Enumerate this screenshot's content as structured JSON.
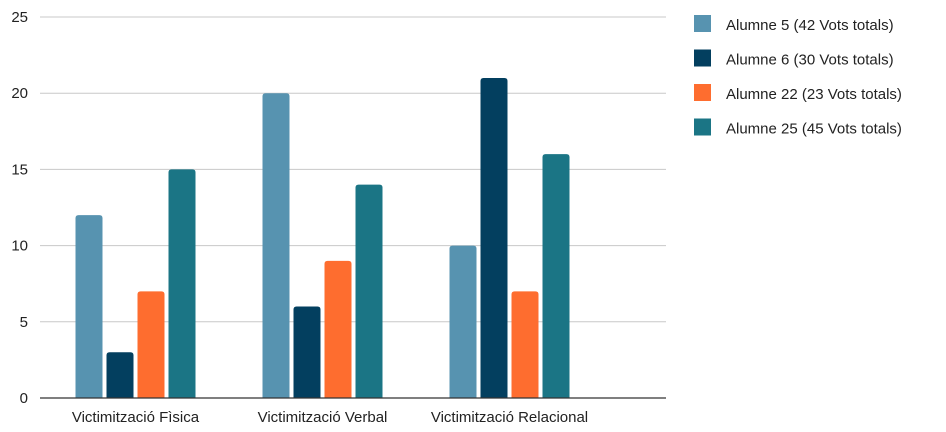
{
  "chart_data": {
    "type": "bar",
    "categories": [
      "Victimització Fìsica",
      "Victimització Verbal",
      "Victimització Relacional"
    ],
    "series": [
      {
        "name": "Alumne 5 (42 Vots totals)",
        "color": "#5793b0",
        "values": [
          12,
          20,
          10
        ]
      },
      {
        "name": "Alumne 6 (30 Vots totals)",
        "color": "#033f5f",
        "values": [
          3,
          6,
          21
        ]
      },
      {
        "name": "Alumne 22 (23 Vots totals)",
        "color": "#fe6d2f",
        "values": [
          7,
          9,
          7
        ]
      },
      {
        "name": "Alumne 25 (45 Vots totals)",
        "color": "#1b7585",
        "values": [
          15,
          14,
          16
        ]
      }
    ],
    "yticks": [
      0,
      5,
      10,
      15,
      20,
      25
    ],
    "ylim": [
      0,
      25
    ],
    "grid": true,
    "legend_position": "right"
  }
}
